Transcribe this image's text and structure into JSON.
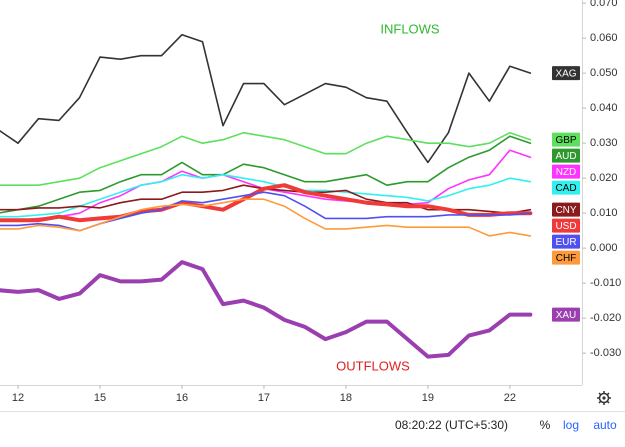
{
  "chart_data": {
    "type": "line",
    "inflows_label": "INFLOWS",
    "outflows_label": "OUTFLOWS",
    "x": [
      -0.25,
      0,
      0.25,
      0.5,
      0.75,
      1,
      1.25,
      1.5,
      1.75,
      2,
      2.25,
      2.5,
      2.75,
      3,
      3.25,
      3.5,
      3.75,
      4,
      4.25,
      4.5,
      4.75,
      5,
      5.25,
      5.5,
      5.75,
      6,
      6.25
    ],
    "xlim": [
      -0.22,
      6.88
    ],
    "xticks": [
      {
        "value": 0,
        "label": "12"
      },
      {
        "value": 1,
        "label": "15"
      },
      {
        "value": 2,
        "label": "16"
      },
      {
        "value": 3,
        "label": "17"
      },
      {
        "value": 4,
        "label": "18"
      },
      {
        "value": 5,
        "label": "19"
      },
      {
        "value": 6,
        "label": "22"
      }
    ],
    "ylim": [
      -0.0391,
      0.0709
    ],
    "yticks": [
      {
        "value": 0.07,
        "label": "0.070"
      },
      {
        "value": 0.06,
        "label": "0.060"
      },
      {
        "value": 0.05,
        "label": "0.050"
      },
      {
        "value": 0.04,
        "label": "0.040"
      },
      {
        "value": 0.03,
        "label": "0.030"
      },
      {
        "value": 0.02,
        "label": "0.020"
      },
      {
        "value": 0.01,
        "label": "0.010"
      },
      {
        "value": 0,
        "label": "0.000"
      },
      {
        "value": -0.01,
        "label": "-0.010"
      },
      {
        "value": -0.02,
        "label": "-0.020"
      },
      {
        "value": -0.03,
        "label": "-0.030"
      }
    ],
    "grid": false,
    "series": [
      {
        "name": "XAG",
        "color": "#333333",
        "line_width": 1.6,
        "values": [
          0.034,
          0.03,
          0.037,
          0.0365,
          0.043,
          0.0546,
          0.054,
          0.055,
          0.055,
          0.061,
          0.059,
          0.035,
          0.047,
          0.047,
          0.041,
          0.044,
          0.047,
          0.046,
          0.043,
          0.042,
          0.033,
          0.0245,
          0.033,
          0.05,
          0.042,
          0.052,
          0.05
        ]
      },
      {
        "name": "GBP",
        "color": "#5ee05e",
        "line_width": 1.6,
        "values": [
          0.018,
          0.018,
          0.018,
          0.019,
          0.02,
          0.023,
          0.025,
          0.027,
          0.029,
          0.032,
          0.03,
          0.031,
          0.033,
          0.032,
          0.031,
          0.029,
          0.027,
          0.027,
          0.03,
          0.032,
          0.031,
          0.03,
          0.03,
          0.029,
          0.03,
          0.033,
          0.031
        ]
      },
      {
        "name": "AUD",
        "color": "#2e9a2e",
        "line_width": 1.6,
        "values": [
          0.01,
          0.011,
          0.012,
          0.014,
          0.016,
          0.0165,
          0.019,
          0.021,
          0.021,
          0.0245,
          0.021,
          0.021,
          0.024,
          0.023,
          0.021,
          0.019,
          0.019,
          0.02,
          0.021,
          0.018,
          0.019,
          0.019,
          0.023,
          0.026,
          0.028,
          0.032,
          0.03
        ]
      },
      {
        "name": "NZD",
        "color": "#ff33ff",
        "line_width": 1.6,
        "values": [
          0.008,
          0.008,
          0.0085,
          0.009,
          0.01,
          0.013,
          0.015,
          0.018,
          0.019,
          0.022,
          0.02,
          0.021,
          0.019,
          0.017,
          0.016,
          0.015,
          0.014,
          0.0135,
          0.013,
          0.0125,
          0.0125,
          0.013,
          0.017,
          0.0195,
          0.021,
          0.028,
          0.026
        ]
      },
      {
        "name": "CAD",
        "color": "#33f0f0",
        "line_width": 1.6,
        "values": [
          0.009,
          0.009,
          0.0095,
          0.01,
          0.012,
          0.014,
          0.016,
          0.018,
          0.019,
          0.021,
          0.02,
          0.021,
          0.02,
          0.019,
          0.0175,
          0.0165,
          0.0165,
          0.016,
          0.0155,
          0.015,
          0.0145,
          0.0135,
          0.015,
          0.017,
          0.018,
          0.02,
          0.019
        ]
      },
      {
        "name": "CNY",
        "color": "#8b1a1a",
        "line_width": 1.6,
        "values": [
          0.011,
          0.011,
          0.0115,
          0.0115,
          0.012,
          0.0115,
          0.013,
          0.014,
          0.014,
          0.016,
          0.016,
          0.0165,
          0.018,
          0.017,
          0.0165,
          0.016,
          0.016,
          0.0165,
          0.014,
          0.013,
          0.013,
          0.011,
          0.011,
          0.011,
          0.0105,
          0.01,
          0.011
        ]
      },
      {
        "name": "USD",
        "color": "#f03a3a",
        "line_width": 4,
        "values": [
          0.008,
          0.008,
          0.008,
          0.009,
          0.008,
          0.0085,
          0.009,
          0.0105,
          0.011,
          0.013,
          0.012,
          0.011,
          0.014,
          0.017,
          0.018,
          0.016,
          0.015,
          0.014,
          0.013,
          0.0125,
          0.012,
          0.012,
          0.011,
          0.0095,
          0.0095,
          0.01,
          0.01
        ]
      },
      {
        "name": "EUR",
        "color": "#5050f0",
        "line_width": 1.6,
        "values": [
          0.0065,
          0.0065,
          0.007,
          0.0065,
          0.005,
          0.007,
          0.0085,
          0.01,
          0.011,
          0.0135,
          0.013,
          0.014,
          0.015,
          0.016,
          0.015,
          0.012,
          0.0085,
          0.0085,
          0.0085,
          0.009,
          0.009,
          0.009,
          0.0095,
          0.0095,
          0.0095,
          0.0095,
          0.01
        ]
      },
      {
        "name": "CHF",
        "color": "#ff9a3c",
        "line_width": 1.6,
        "values": [
          0.0055,
          0.0055,
          0.0065,
          0.006,
          0.005,
          0.007,
          0.009,
          0.011,
          0.012,
          0.0125,
          0.012,
          0.013,
          0.014,
          0.014,
          0.012,
          0.0085,
          0.0055,
          0.0055,
          0.006,
          0.0065,
          0.006,
          0.006,
          0.006,
          0.006,
          0.0035,
          0.0045,
          0.0035
        ]
      },
      {
        "name": "XAU",
        "color": "#9b3fb0",
        "line_width": 4,
        "values": [
          -0.012,
          -0.0125,
          -0.012,
          -0.0145,
          -0.013,
          -0.0077,
          -0.0095,
          -0.0095,
          -0.009,
          -0.004,
          -0.006,
          -0.016,
          -0.015,
          -0.017,
          -0.0205,
          -0.0225,
          -0.026,
          -0.024,
          -0.021,
          -0.021,
          -0.026,
          -0.031,
          -0.0305,
          -0.025,
          -0.0235,
          -0.019,
          -0.019
        ]
      }
    ]
  },
  "status_bar": {
    "time": "08:20:22 (UTC+5:30)",
    "percent": "%",
    "log": "log",
    "auto": "auto"
  }
}
